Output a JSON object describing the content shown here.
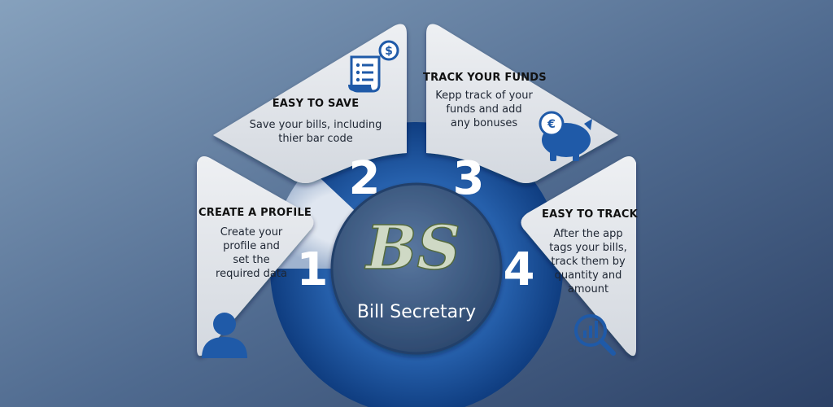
{
  "brand": {
    "logo_text": "BS",
    "name": "Bill Secretary"
  },
  "colors": {
    "background_light": "#7e9ab7",
    "background_dark": "#2f4467",
    "panel": "#e3e6ea",
    "icon_blue": "#1f5aa8",
    "center_disc": "#3e5a80"
  },
  "steps": [
    {
      "number": "1",
      "heading": "CREATE A PROFILE",
      "description": [
        "Create your",
        "profile and",
        "set the",
        "required data"
      ],
      "icon": "user-icon"
    },
    {
      "number": "2",
      "heading": "EASY TO SAVE",
      "description": [
        "Save your bills, including",
        "thier bar code"
      ],
      "icon": "bill-dollar-icon"
    },
    {
      "number": "3",
      "heading": "TRACK YOUR FUNDS",
      "description": [
        "Kepp track of your",
        "funds and add",
        "any bonuses"
      ],
      "icon": "piggy-bank-euro-icon"
    },
    {
      "number": "4",
      "heading": "EASY TO TRACK",
      "description": [
        "After the app",
        "tags your bills,",
        "track them by",
        "quantity and",
        "amount"
      ],
      "icon": "chart-magnifier-icon"
    }
  ]
}
